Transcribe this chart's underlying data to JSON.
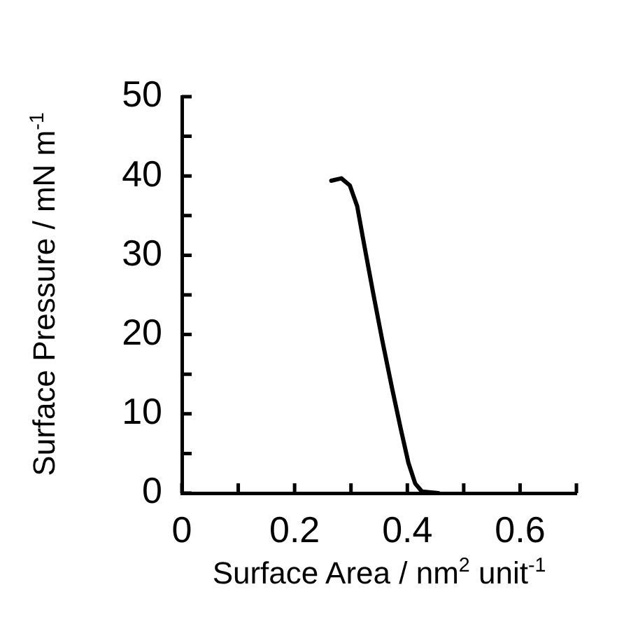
{
  "chart_data": {
    "type": "line",
    "xlabel": "Surface Area / nm$^{2}$ unit$^{-1}$",
    "ylabel": "Surface Pressure / mN m$^{-1}$",
    "x": [
      0.265,
      0.283,
      0.298,
      0.311,
      0.323,
      0.34,
      0.356,
      0.373,
      0.389,
      0.402,
      0.414,
      0.426,
      0.455
    ],
    "series": [
      {
        "color": "#000000",
        "values": [
          39.4,
          39.7,
          38.8,
          36.2,
          31.5,
          25,
          19.1,
          13.2,
          7.9,
          3.8,
          1.2,
          0.2,
          0
        ]
      }
    ],
    "xlim": [
      0,
      0.7
    ],
    "xticks": [
      0,
      {
        "value": 0.1,
        "label": null
      },
      0.2,
      {
        "value": 0.3,
        "label": null
      },
      0.4,
      {
        "value": 0.5,
        "label": null
      },
      0.6,
      {
        "value": 0.7,
        "label": null
      }
    ],
    "ylim": [
      0,
      50
    ],
    "yticks": [
      0,
      {
        "value": 5,
        "label": null
      },
      10,
      {
        "value": 15,
        "label": null
      },
      20,
      {
        "value": 25,
        "label": null
      },
      30,
      {
        "value": 35,
        "label": null
      },
      40,
      {
        "value": 45,
        "label": null
      },
      50
    ],
    "grid": false,
    "legend": false,
    "marker": "none",
    "line_style": "solid"
  }
}
